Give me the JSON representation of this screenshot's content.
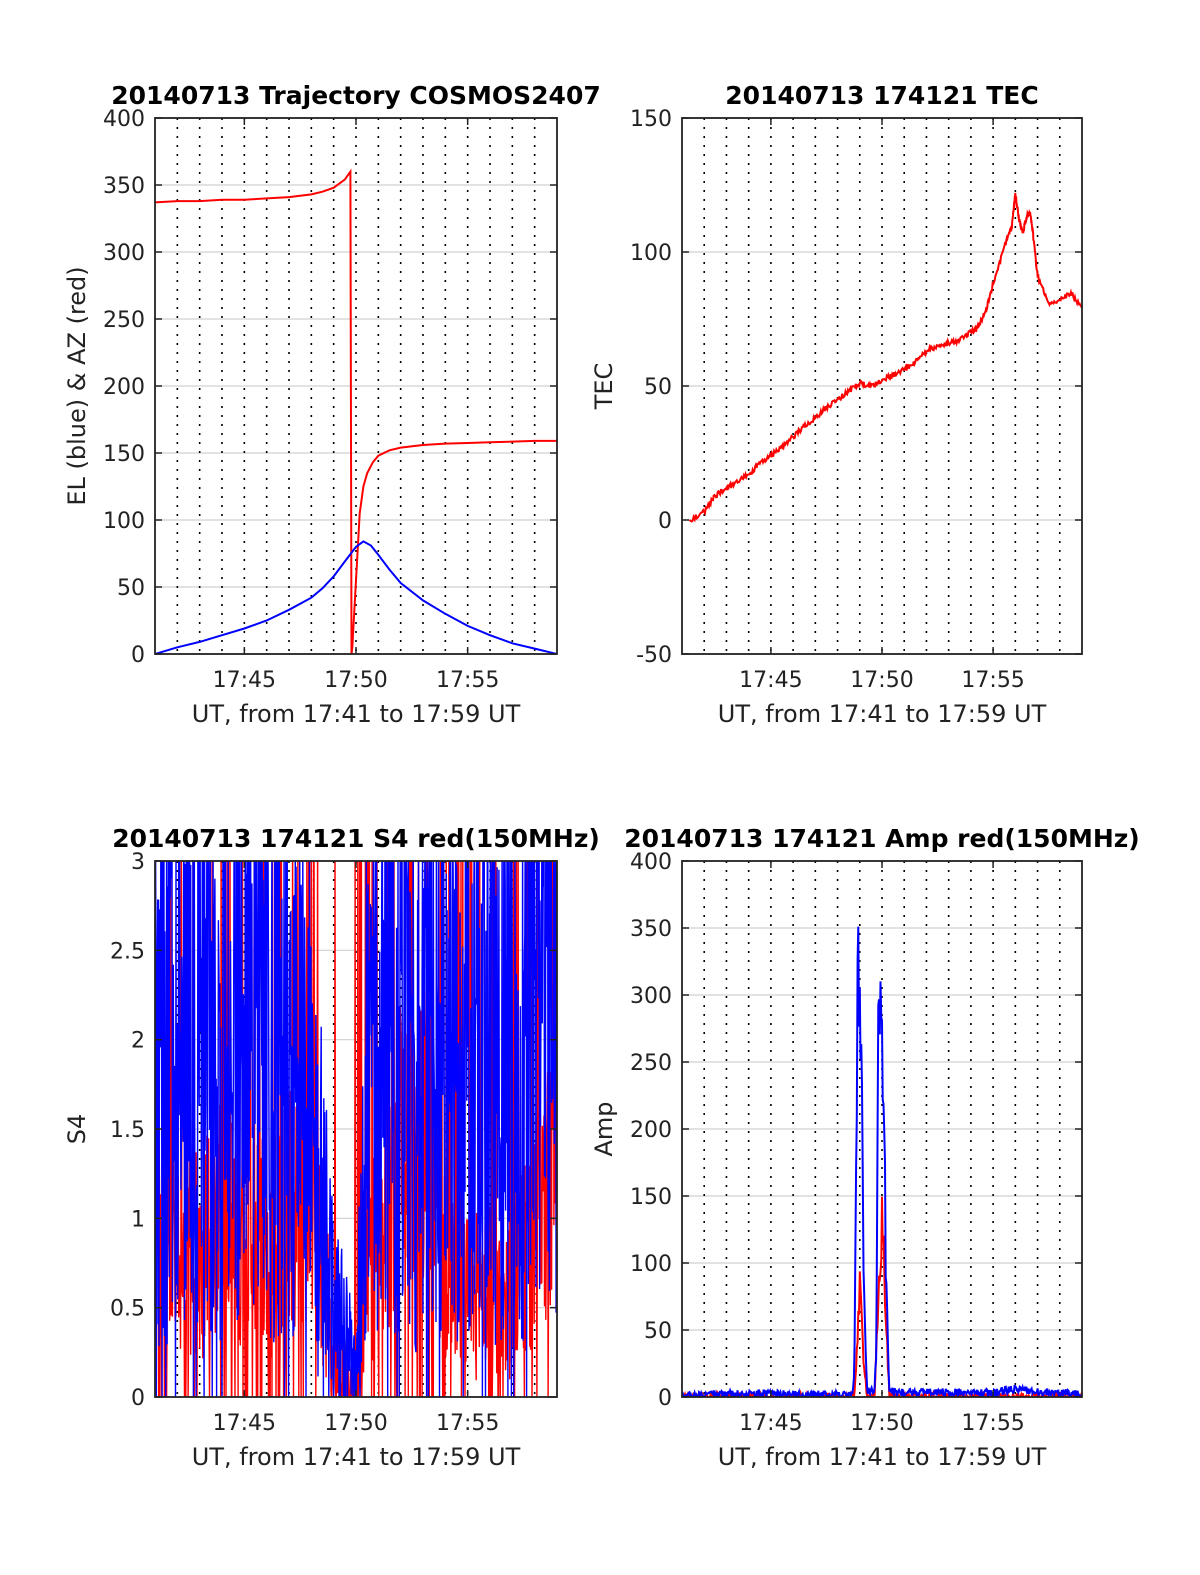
{
  "colors": {
    "red": "#ff0000",
    "blue": "#0000ff",
    "grid": "#d0d0d0",
    "dotted": "#000000"
  },
  "chart_data": [
    {
      "id": "trajectory",
      "type": "line",
      "title": "20140713 Trajectory COSMOS2407",
      "xlabel": "UT, from 17:41 to 17:59 UT",
      "ylabel": "EL (blue) & AZ (red)",
      "xlim": [
        "17:41",
        "17:59"
      ],
      "ylim": [
        0,
        400
      ],
      "xticks": [
        "17:45",
        "17:50",
        "17:55"
      ],
      "yticks": [
        0,
        50,
        100,
        150,
        200,
        250,
        300,
        350,
        400
      ],
      "grid": true,
      "series": [
        {
          "color": "red",
          "x": [
            "17:41:00",
            "17:42:00",
            "17:43:00",
            "17:44:00",
            "17:45:00",
            "17:46:00",
            "17:47:00",
            "17:48:00",
            "17:48:30",
            "17:49:00",
            "17:49:30",
            "17:49:45",
            "17:49:48",
            "17:49:50",
            "17:50:00",
            "17:50:10",
            "17:50:20",
            "17:50:30",
            "17:50:45",
            "17:51:00",
            "17:51:30",
            "17:52:00",
            "17:53:00",
            "17:54:00",
            "17:55:00",
            "17:56:00",
            "17:57:00",
            "17:58:00",
            "17:59:00"
          ],
          "y": [
            337,
            338,
            338,
            339,
            339,
            340,
            341,
            343,
            345,
            348,
            354,
            360,
            0,
            5,
            55,
            105,
            125,
            135,
            143,
            148,
            152,
            154,
            156,
            157,
            157.5,
            158,
            158.5,
            159,
            159
          ]
        },
        {
          "color": "blue",
          "x": [
            "17:41:00",
            "17:42:00",
            "17:43:00",
            "17:44:00",
            "17:45:00",
            "17:46:00",
            "17:47:00",
            "17:48:00",
            "17:48:30",
            "17:49:00",
            "17:49:30",
            "17:50:00",
            "17:50:20",
            "17:50:40",
            "17:51:00",
            "17:51:30",
            "17:52:00",
            "17:53:00",
            "17:54:00",
            "17:55:00",
            "17:56:00",
            "17:57:00",
            "17:58:00",
            "17:59:00"
          ],
          "y": [
            0,
            5,
            9,
            14,
            19,
            25,
            33,
            42,
            49,
            58,
            69,
            80,
            84,
            81,
            74,
            63,
            53,
            40,
            30,
            21,
            14,
            8,
            4,
            0
          ]
        }
      ]
    },
    {
      "id": "tec",
      "type": "line",
      "title": "20140713 174121 TEC",
      "xlabel": "UT, from 17:41 to 17:59 UT",
      "ylabel": "TEC",
      "xlim": [
        "17:41",
        "17:59"
      ],
      "ylim": [
        -50,
        150
      ],
      "xticks": [
        "17:45",
        "17:50",
        "17:55"
      ],
      "yticks": [
        -50,
        0,
        50,
        100,
        150
      ],
      "grid": true,
      "series": [
        {
          "color": "red",
          "x": [
            "17:41:20",
            "17:42:00",
            "17:42:30",
            "17:43:00",
            "17:43:30",
            "17:44:00",
            "17:44:30",
            "17:45:00",
            "17:45:30",
            "17:46:00",
            "17:46:30",
            "17:47:00",
            "17:47:30",
            "17:48:00",
            "17:48:30",
            "17:49:00",
            "17:49:30",
            "17:50:00",
            "17:50:30",
            "17:51:00",
            "17:51:30",
            "17:52:00",
            "17:52:30",
            "17:53:00",
            "17:53:30",
            "17:54:00",
            "17:54:20",
            "17:54:40",
            "17:55:00",
            "17:55:30",
            "17:55:50",
            "17:56:00",
            "17:56:10",
            "17:56:20",
            "17:56:30",
            "17:56:40",
            "17:56:50",
            "17:57:00",
            "17:57:30",
            "17:58:00",
            "17:58:30",
            "17:59:00"
          ],
          "y": [
            0,
            3,
            9,
            12,
            14,
            17,
            21,
            24,
            27,
            31,
            35,
            38,
            42,
            45,
            48,
            51,
            50,
            52,
            54,
            56,
            59,
            63,
            65,
            66,
            67,
            70,
            72,
            78,
            88,
            102,
            109,
            122,
            112,
            107,
            113,
            115,
            104,
            91,
            81,
            82,
            85,
            79
          ]
        }
      ]
    },
    {
      "id": "s4",
      "type": "line",
      "title": "20140713 174121 S4 red(150MHz)",
      "xlabel": "UT, from 17:41 to 17:59 UT",
      "ylabel": "S4",
      "xlim": [
        "17:41",
        "17:59"
      ],
      "ylim": [
        0,
        3
      ],
      "xticks": [
        "17:45",
        "17:50",
        "17:55"
      ],
      "yticks": [
        0,
        0.5,
        1,
        1.5,
        2,
        2.5,
        3
      ],
      "grid": true,
      "series": [
        {
          "color": "red",
          "x": [
            "17:41:00",
            "17:42:00",
            "17:43:00",
            "17:44:00",
            "17:45:00",
            "17:46:00",
            "17:47:00",
            "17:48:00",
            "17:48:30",
            "17:49:00",
            "17:49:30",
            "17:50:00",
            "17:50:30",
            "17:51:00",
            "17:52:00",
            "17:53:00",
            "17:54:00",
            "17:55:00",
            "17:56:00",
            "17:57:00",
            "17:58:00",
            "17:59:00"
          ],
          "y": [
            1.1,
            0.9,
            0.8,
            1.0,
            0.9,
            0.8,
            1.0,
            1.2,
            0.7,
            0.25,
            0.1,
            0.05,
            0.7,
            0.9,
            1.4,
            1.5,
            0.8,
            0.55,
            0.6,
            0.55,
            0.9,
            1.3
          ]
        },
        {
          "color": "blue",
          "x": [
            "17:41:00",
            "17:42:00",
            "17:43:00",
            "17:44:00",
            "17:45:00",
            "17:46:00",
            "17:47:00",
            "17:48:00",
            "17:48:30",
            "17:49:00",
            "17:49:30",
            "17:50:00",
            "17:50:30",
            "17:51:00",
            "17:52:00",
            "17:53:00",
            "17:54:00",
            "17:55:00",
            "17:56:00",
            "17:57:00",
            "17:58:00",
            "17:59:00"
          ],
          "y": [
            1.9,
            2.0,
            2.2,
            2.1,
            2.0,
            2.2,
            1.9,
            1.5,
            1.0,
            0.6,
            0.3,
            0.1,
            1.6,
            1.9,
            2.1,
            1.8,
            1.9,
            2.0,
            2.0,
            2.1,
            2.2,
            2.3
          ]
        }
      ]
    },
    {
      "id": "amp",
      "type": "line",
      "title": "20140713 174121 Amp red(150MHz)",
      "xlabel": "UT, from 17:41 to 17:59 UT",
      "ylabel": "Amp",
      "xlim": [
        "17:41",
        "17:59"
      ],
      "ylim": [
        0,
        400
      ],
      "xticks": [
        "17:45",
        "17:50",
        "17:55"
      ],
      "yticks": [
        0,
        50,
        100,
        150,
        200,
        250,
        300,
        350,
        400
      ],
      "grid": true,
      "series": [
        {
          "color": "red",
          "x": [
            "17:41:00",
            "17:48:45",
            "17:48:55",
            "17:49:00",
            "17:49:05",
            "17:49:10",
            "17:49:20",
            "17:49:40",
            "17:49:50",
            "17:50:00",
            "17:50:05",
            "17:50:10",
            "17:50:20",
            "17:59:00"
          ],
          "y": [
            0,
            0,
            50,
            80,
            60,
            30,
            0,
            0,
            70,
            130,
            110,
            60,
            0,
            0
          ]
        },
        {
          "color": "blue",
          "x": [
            "17:41:00",
            "17:48:40",
            "17:48:45",
            "17:48:50",
            "17:48:55",
            "17:49:00",
            "17:49:05",
            "17:49:10",
            "17:49:20",
            "17:49:40",
            "17:49:45",
            "17:49:50",
            "17:49:55",
            "17:50:00",
            "17:50:05",
            "17:50:10",
            "17:50:20",
            "17:55:00",
            "17:56:00",
            "17:57:00",
            "17:59:00"
          ],
          "y": [
            2,
            2,
            20,
            150,
            340,
            320,
            250,
            90,
            5,
            5,
            40,
            300,
            290,
            270,
            260,
            90,
            4,
            3,
            6,
            4,
            2
          ]
        }
      ]
    }
  ]
}
